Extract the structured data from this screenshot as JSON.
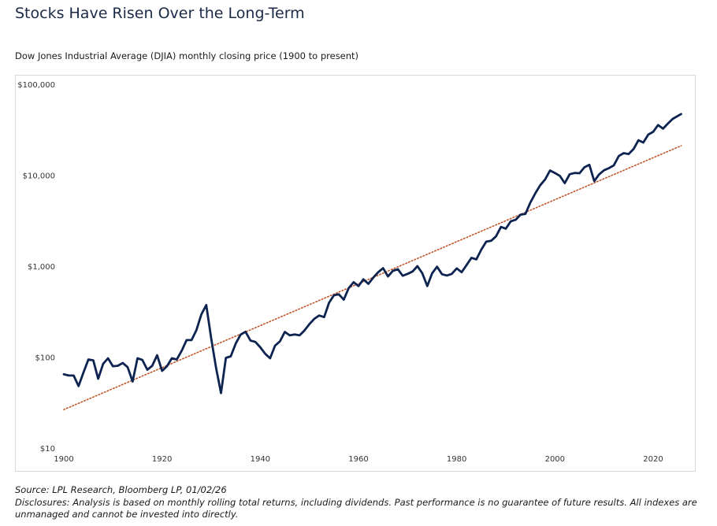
{
  "chart_data": {
    "type": "line",
    "title": "Stocks Have Risen Over the Long-Term",
    "subtitle": "Dow Jones Industrial Average (DJIA) monthly closing price (1900 to present)",
    "source": "Source: LPL Research, Bloomberg LP, 01/02/26",
    "disclosures": "Disclosures: Analysis is based on monthly rolling total returns, including dividends. Past performance is no guarantee of future results. All indexes are unmanaged and cannot be invested into directly.",
    "log_y": true,
    "xlim": [
      1900,
      2026.5
    ],
    "xticks": [
      1900,
      1920,
      1940,
      1960,
      1980,
      2000,
      2020
    ],
    "ylim": [
      10,
      100000
    ],
    "yticks": [
      {
        "value": 10,
        "label": "$10"
      },
      {
        "value": 100,
        "label": "$100"
      },
      {
        "value": 1000,
        "label": "$1,000"
      },
      {
        "value": 10000,
        "label": "$10,000"
      },
      {
        "value": 100000,
        "label": "$100,000"
      }
    ],
    "series": [
      {
        "color": "#0d2350",
        "style": "solid",
        "x": [
          1900,
          1901,
          1902,
          1903,
          1904,
          1905,
          1906,
          1907,
          1908,
          1909,
          1910,
          1911,
          1912,
          1913,
          1914,
          1915,
          1916,
          1917,
          1918,
          1919,
          1920,
          1921,
          1922,
          1923,
          1924,
          1925,
          1926,
          1927,
          1928,
          1929,
          1930,
          1931,
          1932,
          1933,
          1934,
          1935,
          1936,
          1937,
          1938,
          1939,
          1940,
          1941,
          1942,
          1943,
          1944,
          1945,
          1946,
          1947,
          1948,
          1949,
          1950,
          1951,
          1952,
          1953,
          1954,
          1955,
          1956,
          1957,
          1958,
          1959,
          1960,
          1961,
          1962,
          1963,
          1964,
          1965,
          1966,
          1967,
          1968,
          1969,
          1970,
          1971,
          1972,
          1973,
          1974,
          1975,
          1976,
          1977,
          1978,
          1979,
          1980,
          1981,
          1982,
          1983,
          1984,
          1985,
          1986,
          1987,
          1988,
          1989,
          1990,
          1991,
          1992,
          1993,
          1994,
          1995,
          1996,
          1997,
          1998,
          1999,
          2000,
          2001,
          2002,
          2003,
          2004,
          2005,
          2006,
          2007,
          2008,
          2009,
          2010,
          2011,
          2012,
          2013,
          2014,
          2015,
          2016,
          2017,
          2018,
          2019,
          2020,
          2021,
          2022,
          2023,
          2024,
          2025.7
        ],
        "values": [
          66,
          64,
          64,
          49,
          69,
          96,
          94,
          59,
          86,
          99,
          81,
          82,
          88,
          79,
          55,
          99,
          95,
          74,
          82,
          107,
          72,
          81,
          99,
          96,
          120,
          157,
          157,
          202,
          300,
          381,
          165,
          78,
          41,
          100,
          104,
          144,
          180,
          194,
          155,
          150,
          131,
          111,
          99,
          136,
          152,
          193,
          177,
          181,
          177,
          200,
          235,
          269,
          292,
          281,
          404,
          488,
          500,
          436,
          584,
          679,
          616,
          731,
          652,
          763,
          874,
          969,
          786,
          905,
          944,
          800,
          839,
          890,
          1020,
          851,
          616,
          852,
          1005,
          831,
          805,
          839,
          964,
          875,
          1047,
          1259,
          1212,
          1547,
          1896,
          1939,
          2169,
          2753,
          2634,
          3169,
          3301,
          3754,
          3834,
          5117,
          6448,
          7908,
          9181,
          11497,
          10787,
          10022,
          8342,
          10454,
          10783,
          10718,
          12463,
          13265,
          8776,
          10428,
          11578,
          12218,
          13104,
          16577,
          17823,
          17425,
          19763,
          24719,
          23327,
          28538,
          30606,
          36338,
          33147,
          37690,
          42544,
          48000
        ]
      },
      {
        "color": "#c0562a",
        "style": "dotted",
        "x": [
          1900,
          2025.7
        ],
        "values": [
          27,
          21500
        ]
      }
    ]
  }
}
